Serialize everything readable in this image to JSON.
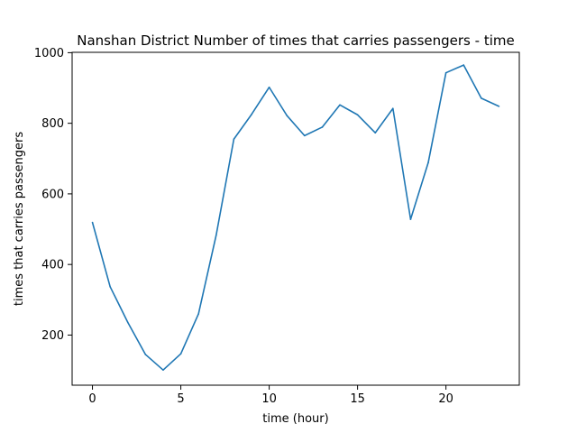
{
  "chart_data": {
    "type": "line",
    "title": "Nanshan District Number of times that carries passengers - time",
    "xlabel": "time (hour)",
    "ylabel": "times that carries passengers",
    "xlim": [
      -1.15,
      24.15
    ],
    "ylim": [
      58,
      1001
    ],
    "xticks": [
      0,
      5,
      10,
      15,
      20
    ],
    "yticks": [
      200,
      400,
      600,
      800,
      1000
    ],
    "grid": false,
    "series": [
      {
        "x": [
          0,
          1,
          2,
          3,
          4,
          5,
          6,
          7,
          8,
          9,
          10,
          11,
          12,
          13,
          14,
          15,
          16,
          17,
          18,
          19,
          20,
          21,
          22,
          23
        ],
        "y": [
          519,
          337,
          236,
          145,
          101,
          147,
          260,
          483,
          755,
          825,
          902,
          822,
          765,
          789,
          852,
          824,
          773,
          842,
          528,
          689,
          943,
          965,
          871,
          848
        ]
      }
    ],
    "line_color": "#1f77b4"
  }
}
